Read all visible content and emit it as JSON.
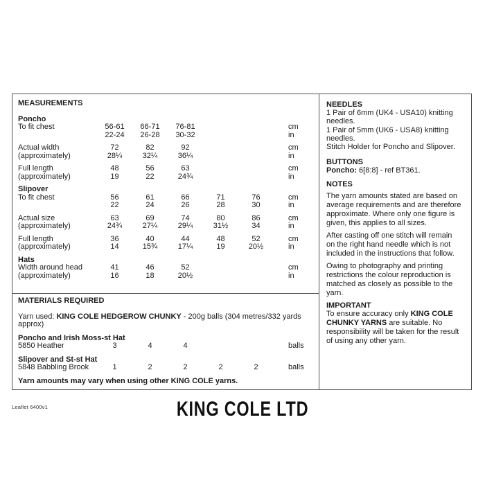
{
  "document": {
    "leaflet_label": "Leaflet 6400v1",
    "brand_footer": "KING COLE LTD"
  },
  "measurements": {
    "title": "MEASUREMENTS",
    "units": {
      "metric": "cm",
      "imperial": "in"
    },
    "sections": [
      {
        "name": "Poncho",
        "rows": [
          {
            "label": "To fit chest",
            "label2": "",
            "v1": [
              "56-61",
              "66-71",
              "76-81",
              "",
              ""
            ],
            "v2": [
              "22-24",
              "26-28",
              "30-32",
              "",
              ""
            ]
          },
          {
            "label": "Actual width",
            "label2": "(approximately)",
            "v1": [
              "72",
              "82",
              "92",
              "",
              ""
            ],
            "v2": [
              "28¼",
              "32¼",
              "36¼",
              "",
              ""
            ]
          },
          {
            "label": "Full length",
            "label2": "(approximately)",
            "v1": [
              "48",
              "56",
              "63",
              "",
              ""
            ],
            "v2": [
              "19",
              "22",
              "24¾",
              "",
              ""
            ]
          }
        ]
      },
      {
        "name": "Slipover",
        "rows": [
          {
            "label": "To fit chest",
            "label2": "",
            "v1": [
              "56",
              "61",
              "66",
              "71",
              "76"
            ],
            "v2": [
              "22",
              "24",
              "26",
              "28",
              "30"
            ]
          },
          {
            "label": "Actual size",
            "label2": "(approximately)",
            "v1": [
              "63",
              "69",
              "74",
              "80",
              "86"
            ],
            "v2": [
              "24¾",
              "27¼",
              "29¼",
              "31½",
              "34"
            ]
          },
          {
            "label": "Full length",
            "label2": "(approximately)",
            "v1": [
              "36",
              "40",
              "44",
              "48",
              "52"
            ],
            "v2": [
              "14",
              "15¾",
              "17¼",
              "19",
              "20½"
            ]
          }
        ]
      },
      {
        "name": "Hats",
        "rows": [
          {
            "label": "Width around head",
            "label2": "(approximately)",
            "v1": [
              "41",
              "46",
              "52",
              "",
              ""
            ],
            "v2": [
              "16",
              "18",
              "20½",
              "",
              ""
            ]
          }
        ]
      }
    ]
  },
  "materials": {
    "title": "MATERIALS REQUIRED",
    "yarn_line1_prefix": "Yarn used: ",
    "yarn_line1_bold": "KING COLE HEDGEROW CHUNKY",
    "yarn_line1_suffix": " - 200g balls (304 metres/332 yards",
    "yarn_line2": "approx)",
    "groups": [
      {
        "heading": "Poncho and Irish Moss-st Hat",
        "yarn": "5850 Heather",
        "qty": [
          "3",
          "4",
          "4",
          "",
          ""
        ],
        "unit": "balls"
      },
      {
        "heading": "Slipover and St-st Hat",
        "yarn": "5848 Babbling Brook",
        "qty": [
          "1",
          "2",
          "2",
          "2",
          "2"
        ],
        "unit": "balls"
      }
    ],
    "note": "Yarn amounts may vary when using other KING COLE yarns."
  },
  "needles": {
    "title": "NEEDLES",
    "lines": [
      "1 Pair of 6mm (UK4 - USA10) knitting",
      "needles.",
      "1 Pair of 5mm (UK6 - USA8) knitting",
      "needles.",
      "Stitch Holder for Poncho and Slipover."
    ]
  },
  "buttons_section": {
    "title": "BUTTONS",
    "item_bold": "Poncho:",
    "item_text": " 6[8:8] - ref BT361."
  },
  "notes": {
    "title": "NOTES",
    "paragraphs": [
      [
        "The yarn amounts stated are based on",
        "average requirements and are therefore",
        "approximate. Where only one figure is",
        "given, this applies to all sizes."
      ],
      [
        "After casting off one stitch will remain",
        "on the right hand needle which is not",
        "included in the instructions that follow."
      ],
      [
        "Owing to photography and printing",
        "restrictions the colour reproduction is",
        "matched as closely as possible to the",
        "yarn."
      ]
    ]
  },
  "important": {
    "title": "IMPORTANT",
    "line1_prefix": "To ensure accuracy only ",
    "line1_bold": "KING COLE",
    "line2_bold": "CHUNKY YARNS",
    "line2_suffix": " are suitable. No",
    "line3": "responsibility will be taken for the result",
    "line4": "of using any other yarn."
  },
  "colors": {
    "background": "#ffffff",
    "text": "#1b1b1b",
    "border": "#4d4d4d"
  }
}
